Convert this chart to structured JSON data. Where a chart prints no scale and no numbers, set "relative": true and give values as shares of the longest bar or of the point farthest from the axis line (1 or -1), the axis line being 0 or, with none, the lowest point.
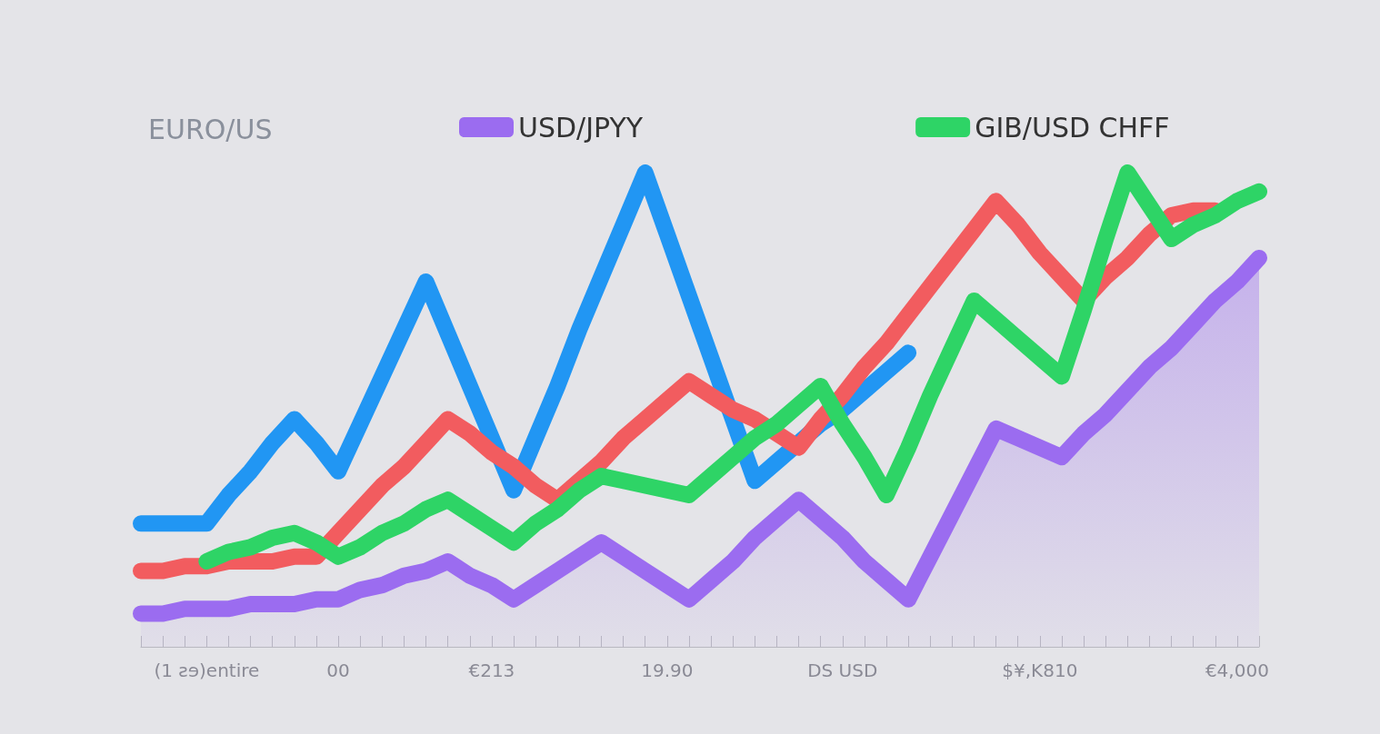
{
  "chart_data": {
    "type": "line",
    "title": "EURO/US",
    "relative": true,
    "legend": "top",
    "marker": "none",
    "line_style": "solid",
    "categories": [
      null,
      null,
      null,
      "(1 ƨɘ)entire",
      null,
      null,
      null,
      null,
      null,
      "00",
      null,
      null,
      null,
      null,
      null,
      null,
      "€213",
      null,
      null,
      null,
      null,
      null,
      null,
      null,
      "19.90",
      null,
      null,
      null,
      null,
      null,
      null,
      null,
      "DS USD",
      null,
      null,
      null,
      null,
      null,
      null,
      null,
      null,
      "$¥,K810",
      null,
      null,
      null,
      null,
      null,
      null,
      null,
      null,
      "€4,000",
      null
    ],
    "series": [
      {
        "name": "USD/JPYY",
        "type": "area",
        "color": "#9b6cf0",
        "values": [
          0.07,
          0.07,
          0.08,
          0.08,
          0.08,
          0.09,
          0.09,
          0.09,
          0.1,
          0.1,
          0.12,
          0.13,
          0.15,
          0.16,
          0.18,
          0.15,
          0.13,
          0.1,
          0.13,
          0.16,
          0.19,
          0.22,
          0.19,
          0.16,
          0.13,
          0.1,
          0.14,
          0.18,
          0.23,
          0.27,
          0.31,
          0.27,
          0.23,
          0.18,
          0.14,
          0.1,
          0.19,
          0.28,
          0.37,
          0.46,
          0.44,
          0.42,
          0.4,
          0.45,
          0.49,
          0.54,
          0.59,
          0.63,
          0.68,
          0.73,
          0.77,
          0.82
        ]
      },
      {
        "color": "#2196f3",
        "values": [
          0.26,
          0.26,
          0.26,
          0.26,
          0.32,
          0.37,
          0.43,
          0.48,
          0.43,
          0.37,
          0.47,
          0.57,
          0.67,
          0.77,
          0.66,
          0.55,
          0.44,
          0.33,
          0.44,
          0.55,
          0.67,
          0.78,
          0.89,
          1,
          0.87,
          0.74,
          0.61,
          0.48,
          0.35,
          0.39,
          0.43,
          0.47,
          0.5,
          0.54,
          0.58,
          0.62,
          null,
          null,
          null,
          null,
          null,
          null,
          null,
          null,
          null,
          null,
          null,
          null,
          null,
          null,
          null,
          null
        ]
      },
      {
        "color": "#f25c5f",
        "values": [
          0.16,
          0.16,
          0.17,
          0.17,
          0.18,
          0.18,
          0.18,
          0.19,
          0.19,
          0.24,
          0.29,
          0.34,
          0.38,
          0.43,
          0.48,
          0.45,
          0.41,
          0.38,
          0.34,
          0.31,
          0.35,
          0.39,
          0.44,
          0.48,
          0.52,
          0.56,
          0.53,
          0.5,
          0.48,
          0.45,
          0.42,
          0.48,
          0.53,
          0.59,
          0.64,
          0.7,
          0.76,
          0.82,
          0.88,
          0.94,
          0.89,
          0.83,
          0.78,
          0.73,
          0.78,
          0.82,
          0.87,
          0.91,
          0.92,
          0.92,
          null,
          null
        ]
      },
      {
        "name": "GIB/USD CHFF",
        "color": "#2ed466",
        "values": [
          null,
          null,
          null,
          0.18,
          0.2,
          0.21,
          0.23,
          0.24,
          0.22,
          0.19,
          0.21,
          0.24,
          0.26,
          0.29,
          0.31,
          0.28,
          0.25,
          0.22,
          0.26,
          0.29,
          0.33,
          0.36,
          0.35,
          0.34,
          0.33,
          0.32,
          0.36,
          0.4,
          0.44,
          0.47,
          0.51,
          0.55,
          0.47,
          0.4,
          0.32,
          0.42,
          0.53,
          0.63,
          0.73,
          0.69,
          0.65,
          0.61,
          0.57,
          0.71,
          0.86,
          1,
          0.93,
          0.86,
          0.89,
          0.91,
          0.94,
          0.96
        ]
      }
    ]
  }
}
